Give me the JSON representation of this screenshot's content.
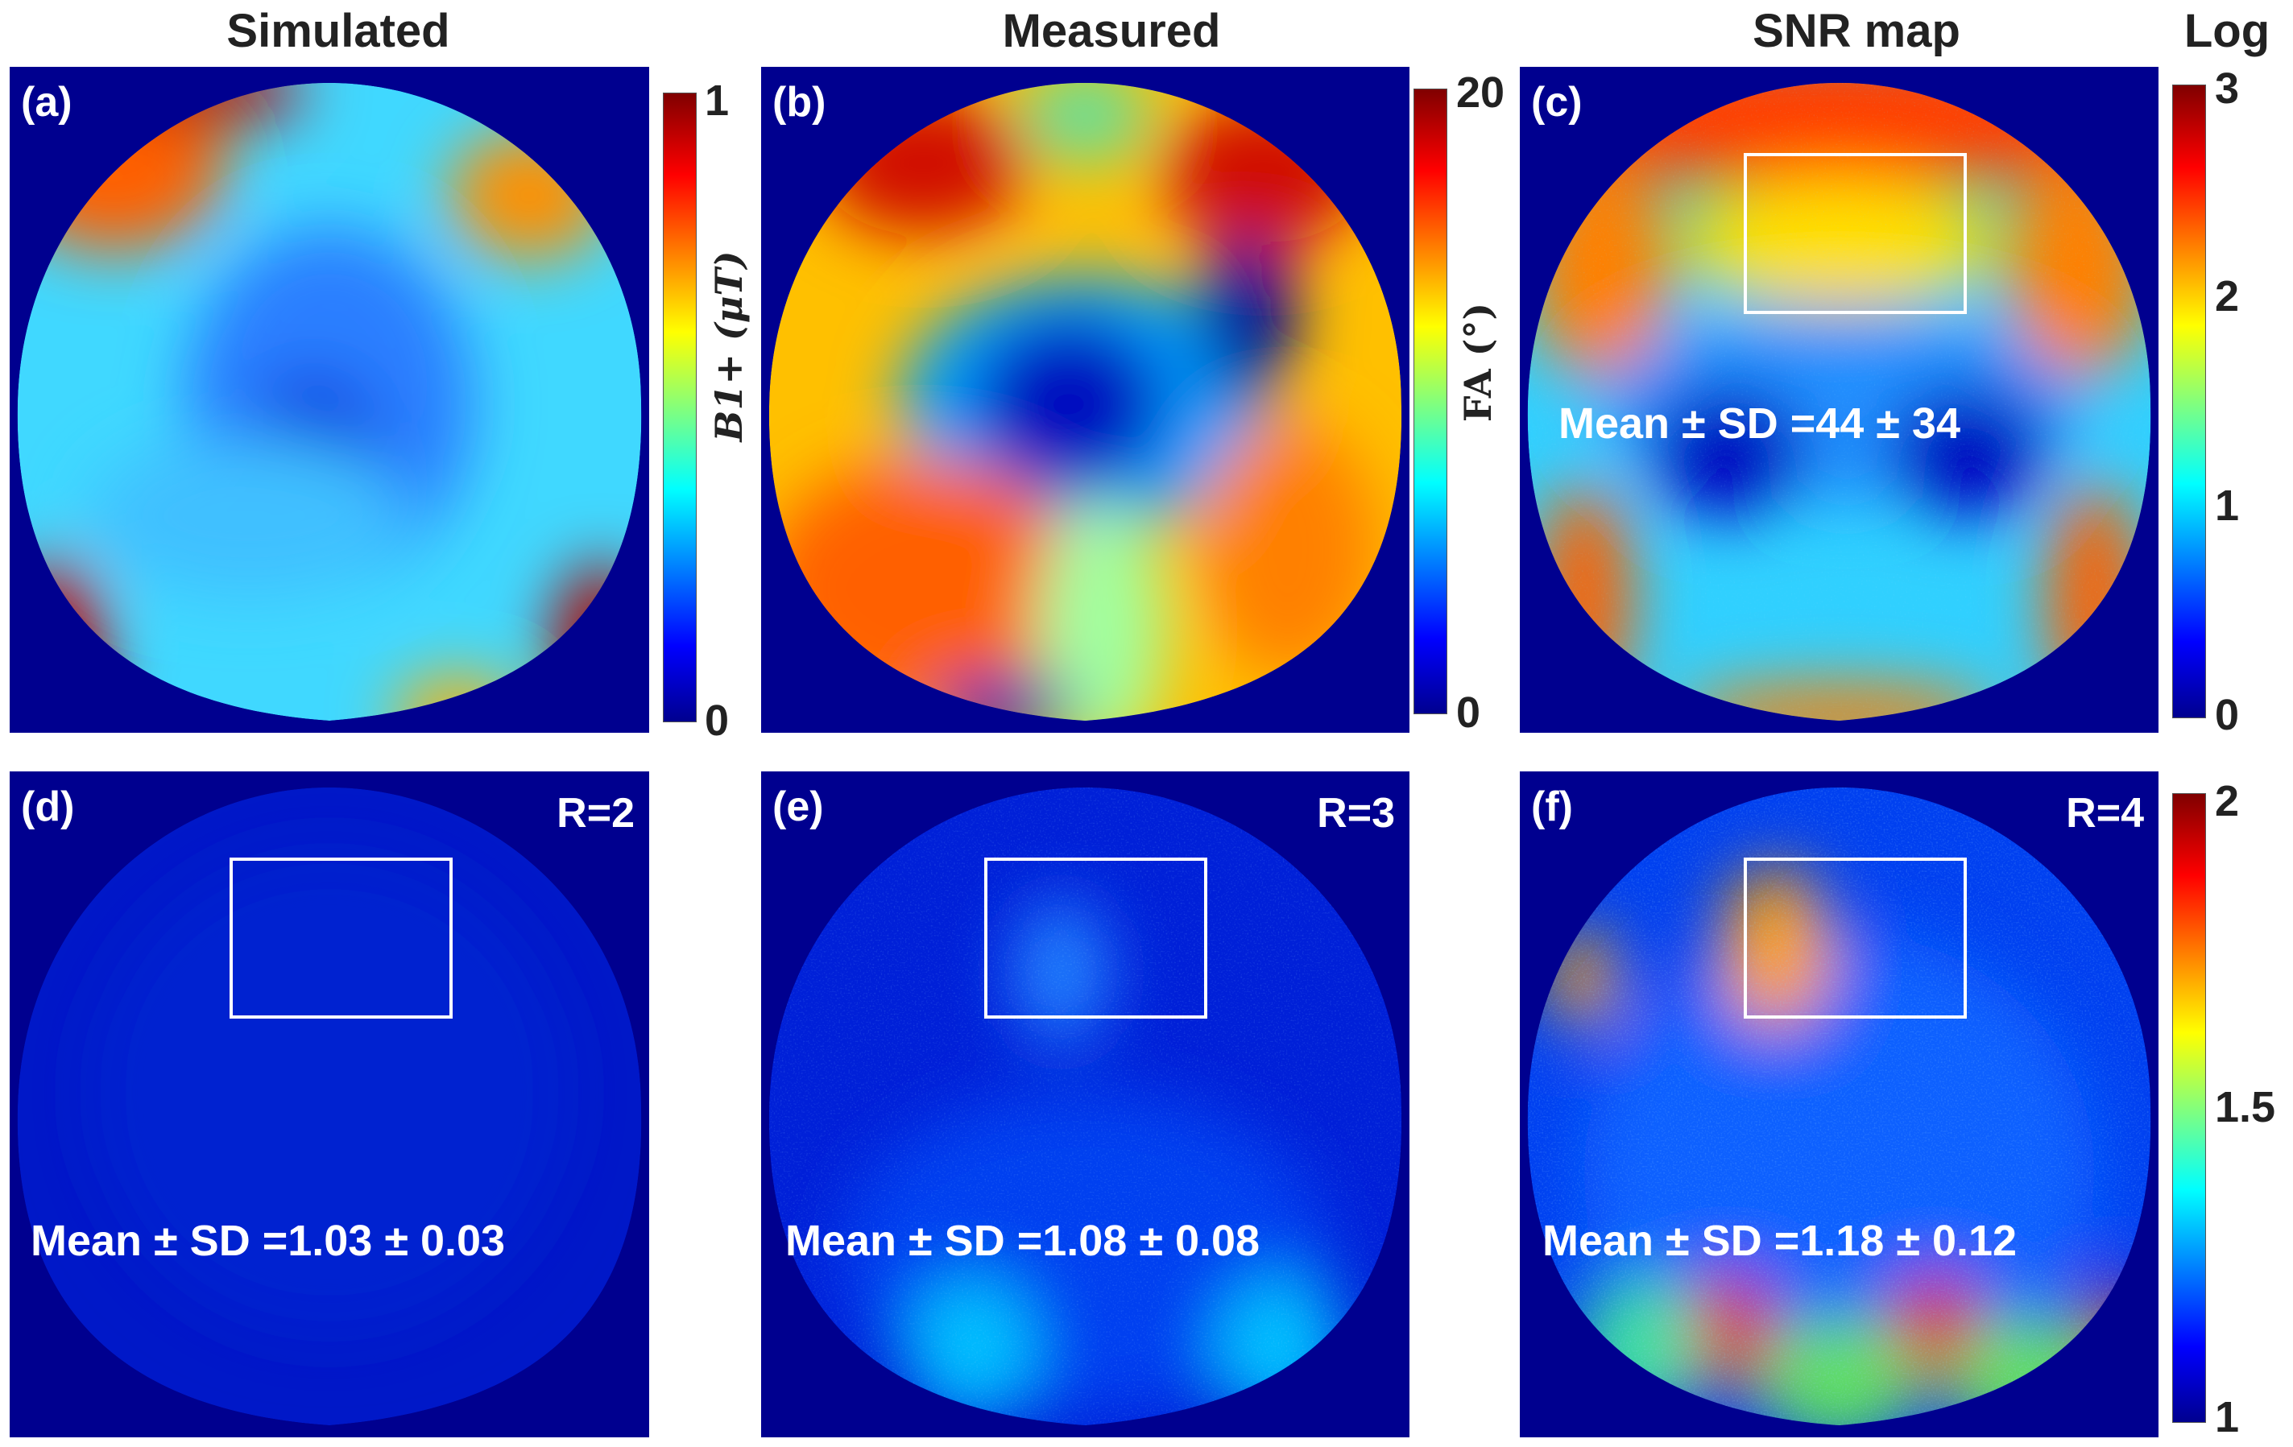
{
  "columns": {
    "simulated": "Simulated",
    "measured": "Measured",
    "snr": "SNR map",
    "log": "Log"
  },
  "panels": {
    "a": {
      "label": "(a)"
    },
    "b": {
      "label": "(b)"
    },
    "c": {
      "label": "(c)",
      "stat": "Mean ± SD =44 ± 34"
    },
    "d": {
      "label": "(d)",
      "r": "R=2",
      "stat": "Mean ± SD =1.03 ± 0.03"
    },
    "e": {
      "label": "(e)",
      "r": "R=3",
      "stat": "Mean ± SD =1.08 ± 0.08"
    },
    "f": {
      "label": "(f)",
      "r": "R=4",
      "stat": "Mean ± SD =1.18 ± 0.12"
    }
  },
  "colorbars": {
    "a": {
      "label": "B1+ (μT)",
      "label_main": "B",
      "label_sup": "+",
      "label_sub": "1",
      "label_unit": " (μT)",
      "ticks": [
        "1",
        "0"
      ],
      "range": [
        0,
        1
      ]
    },
    "b": {
      "label": "FA (°)",
      "ticks": [
        "20",
        "0"
      ],
      "range": [
        0,
        20
      ]
    },
    "c": {
      "ticks": [
        "3",
        "2",
        "1",
        "0"
      ],
      "range": [
        0,
        3
      ],
      "scale": "log"
    },
    "f": {
      "ticks": [
        "2",
        "1.5",
        "1"
      ],
      "range": [
        1,
        2
      ]
    }
  },
  "colormap": "jet",
  "colors": {
    "background": "#00008f",
    "roi_box": "#ffffff"
  }
}
